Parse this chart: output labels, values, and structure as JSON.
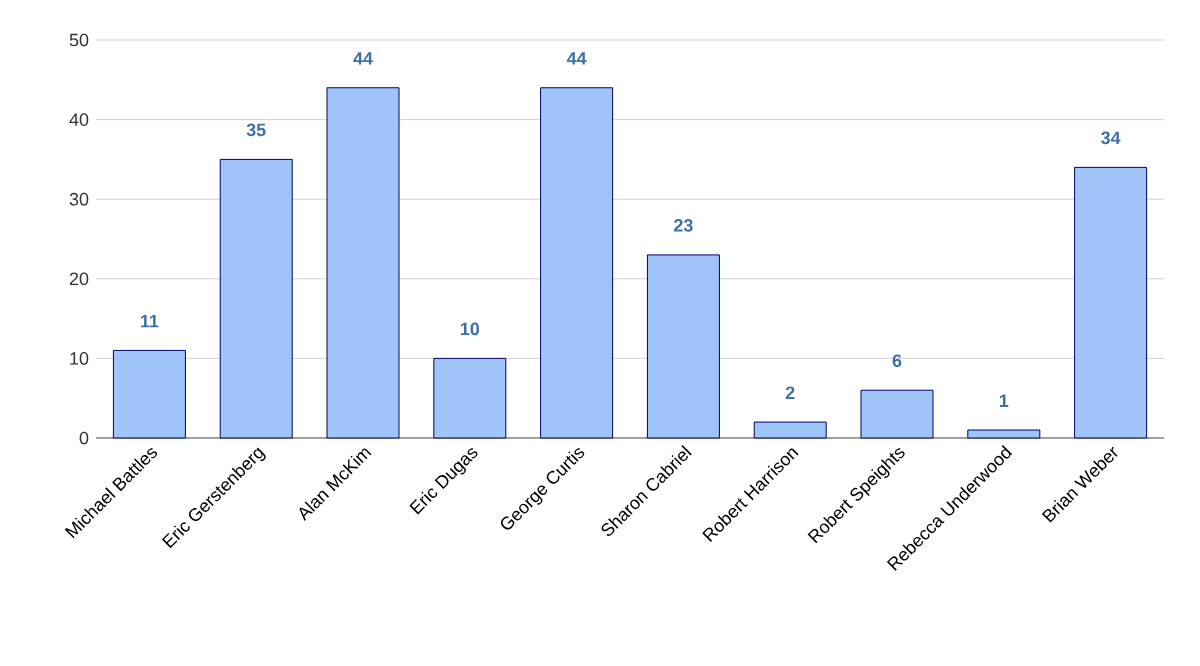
{
  "chart_data": {
    "type": "bar",
    "categories": [
      "Michael Battles",
      "Eric Gerstenberg",
      "Alan McKim",
      "Eric Dugas",
      "George Curtis",
      "Sharon Cabriel",
      "Robert Harrison",
      "Robert Speights",
      "Rebecca Underwood",
      "Brian Weber"
    ],
    "values": [
      11,
      35,
      44,
      10,
      44,
      23,
      2,
      6,
      1,
      34
    ],
    "color": "#9fc5f8",
    "ylim": [
      0,
      50
    ],
    "yticks": [
      0,
      10,
      20,
      30,
      40,
      50
    ],
    "grid": "y",
    "data_labels": true
  }
}
